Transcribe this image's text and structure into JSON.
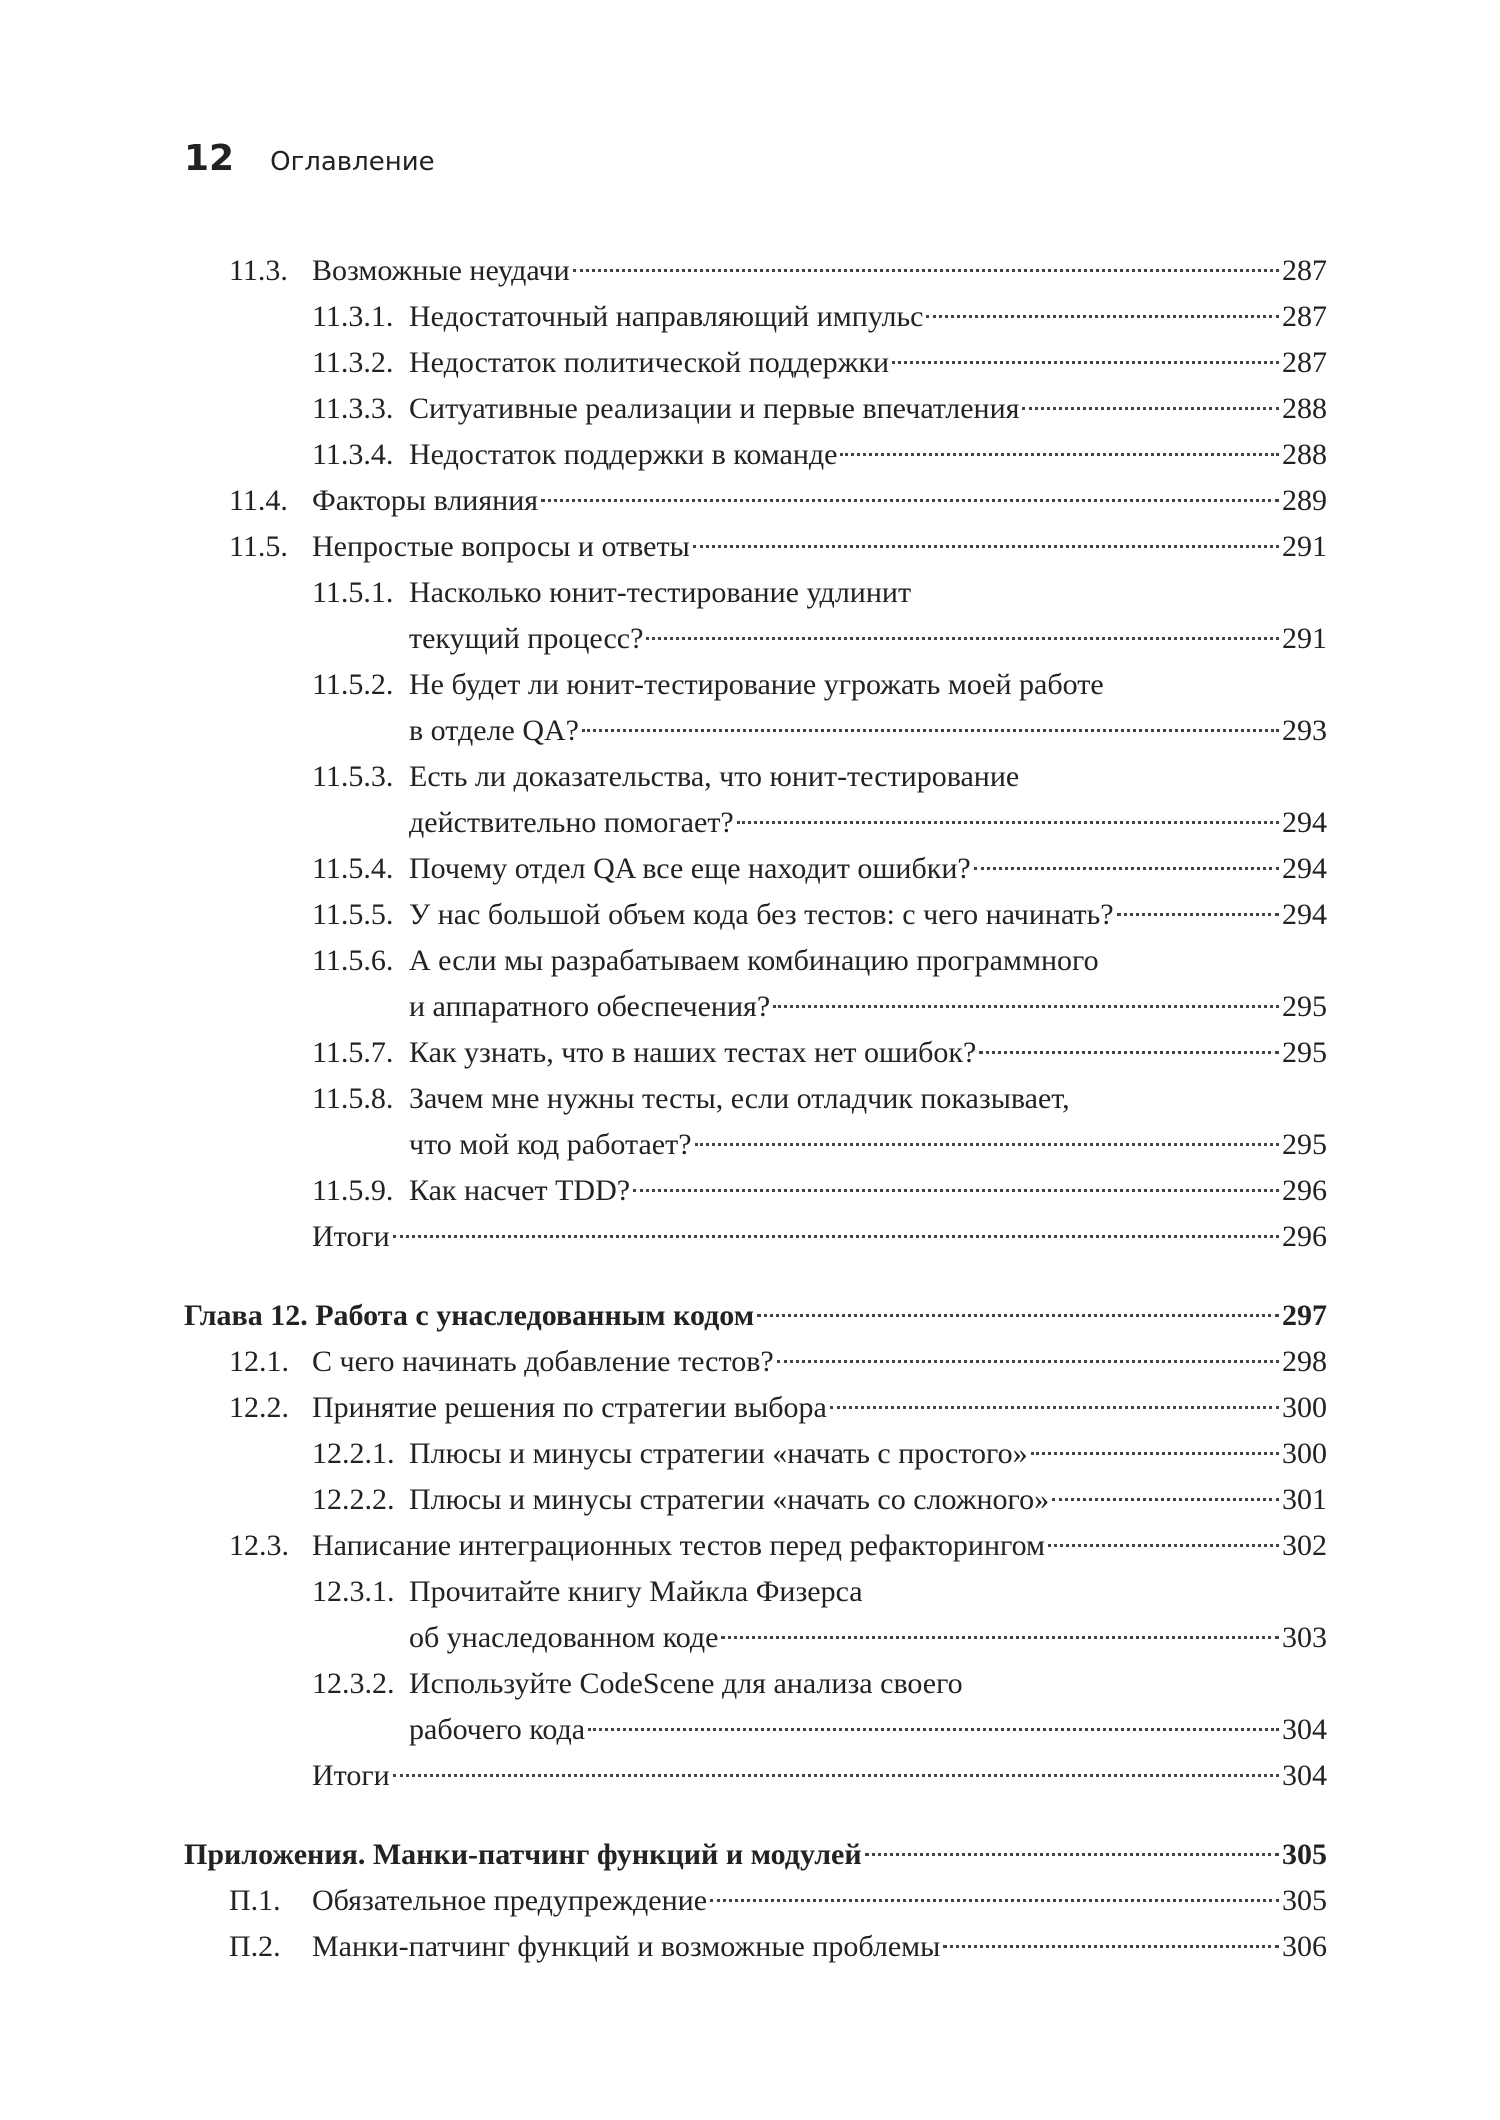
{
  "header": {
    "page_number": "12",
    "title": "Оглавление"
  },
  "blocks": [
    {
      "entries": [
        {
          "number": "11.3.",
          "lines": [
            "Возможные неудачи"
          ],
          "page": "287",
          "sub": [
            {
              "number": "11.3.1.",
              "lines": [
                "Недостаточный направляющий импульс"
              ],
              "page": "287"
            },
            {
              "number": "11.3.2.",
              "lines": [
                "Недостаток политической поддержки"
              ],
              "page": "287"
            },
            {
              "number": "11.3.3.",
              "lines": [
                "Ситуативные реализации и первые впечатления"
              ],
              "page": "288"
            },
            {
              "number": "11.3.4.",
              "lines": [
                "Недостаток поддержки в команде"
              ],
              "page": "288"
            }
          ]
        },
        {
          "number": "11.4.",
          "lines": [
            "Факторы влияния"
          ],
          "page": "289"
        },
        {
          "number": "11.5.",
          "lines": [
            "Непростые вопросы и ответы"
          ],
          "page": "291",
          "sub": [
            {
              "number": "11.5.1.",
              "lines": [
                "Насколько юнит-тестирование удлинит",
                "текущий процесс?"
              ],
              "page": "291"
            },
            {
              "number": "11.5.2.",
              "lines": [
                "Не будет ли юнит-тестирование угрожать моей работе",
                "в отделе QA?"
              ],
              "page": "293"
            },
            {
              "number": "11.5.3.",
              "lines": [
                "Есть ли доказательства, что юнит-тестирование",
                "действительно помогает?"
              ],
              "page": "294"
            },
            {
              "number": "11.5.4.",
              "lines": [
                "Почему отдел QA все еще находит ошибки?"
              ],
              "page": "294"
            },
            {
              "number": "11.5.5.",
              "lines": [
                "У нас большой объем кода без тестов: с чего начинать?"
              ],
              "page": "294"
            },
            {
              "number": "11.5.6.",
              "lines": [
                "А если мы разрабатываем комбинацию программного",
                "и аппаратного обеспечения?"
              ],
              "page": "295"
            },
            {
              "number": "11.5.7.",
              "lines": [
                "Как узнать, что в наших тестах нет ошибок?"
              ],
              "page": "295"
            },
            {
              "number": "11.5.8.",
              "lines": [
                "Зачем мне нужны тесты, если отладчик показывает,",
                "что мой код работает?"
              ],
              "page": "295"
            },
            {
              "number": "11.5.9.",
              "lines": [
                "Как насчет TDD?"
              ],
              "page": "296"
            }
          ]
        },
        {
          "lines": [
            "Итоги"
          ],
          "page": "296"
        }
      ]
    },
    {
      "heading": {
        "text": "Глава 12. Работа с унаследованным кодом",
        "page": "297"
      },
      "entries": [
        {
          "number": "12.1.",
          "lines": [
            "С чего начинать добавление тестов?"
          ],
          "page": "298"
        },
        {
          "number": "12.2.",
          "lines": [
            "Принятие решения по стратегии выбора"
          ],
          "page": "300",
          "sub": [
            {
              "number": "12.2.1.",
              "lines": [
                "Плюсы и минусы стратегии «начать с простого»"
              ],
              "page": "300"
            },
            {
              "number": "12.2.2.",
              "lines": [
                "Плюсы и минусы стратегии «начать со сложного»"
              ],
              "page": "301"
            }
          ]
        },
        {
          "number": "12.3.",
          "lines": [
            "Написание интеграционных тестов перед рефакторингом"
          ],
          "page": "302",
          "sub": [
            {
              "number": "12.3.1.",
              "lines": [
                "Прочитайте книгу Майкла Физерса",
                "об унаследованном коде"
              ],
              "page": "303"
            },
            {
              "number": "12.3.2.",
              "lines": [
                "Используйте CodeScene для анализа своего",
                "рабочего кода"
              ],
              "page": "304"
            }
          ]
        },
        {
          "lines": [
            "Итоги"
          ],
          "page": "304"
        }
      ]
    },
    {
      "heading": {
        "text": "Приложения. Манки-патчинг функций и модулей",
        "page": "305"
      },
      "entries": [
        {
          "number": "П.1.",
          "lines": [
            "Обязательное предупреждение"
          ],
          "page": "305"
        },
        {
          "number": "П.2.",
          "lines": [
            "Манки-патчинг функций и возможные проблемы"
          ],
          "page": "306"
        }
      ]
    }
  ]
}
